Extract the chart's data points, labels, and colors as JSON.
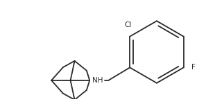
{
  "background": "#ffffff",
  "line_color": "#2a2a2a",
  "line_width": 1.3,
  "figsize": [
    3.1,
    1.5
  ],
  "dpi": 100,
  "Cl_label": "Cl",
  "F_label": "F",
  "NH_label": "NH",
  "text_fontsize": 7.5
}
